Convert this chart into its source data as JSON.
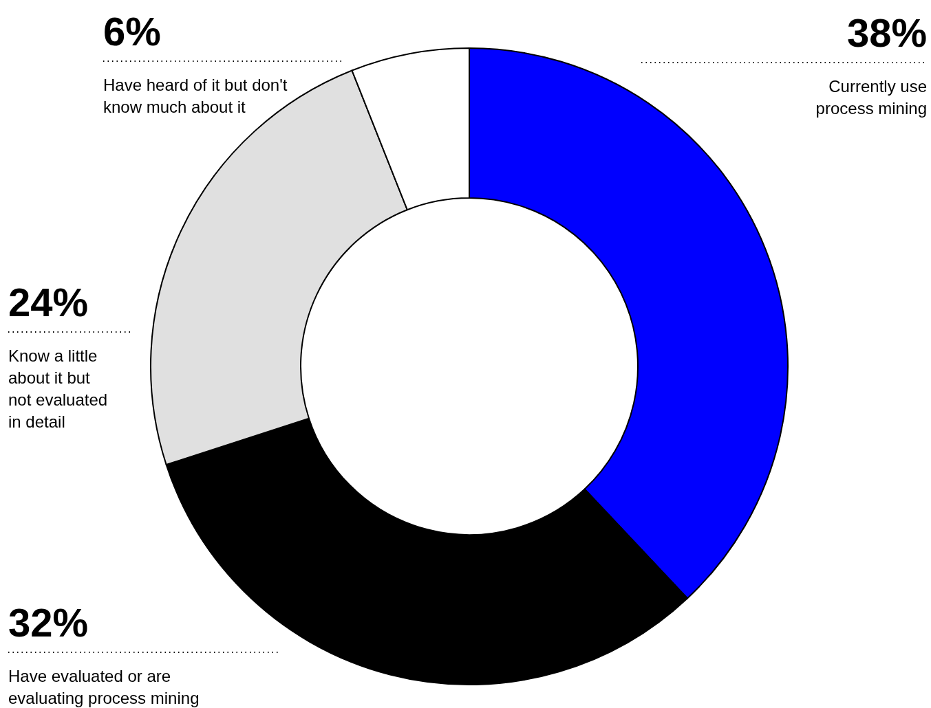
{
  "chart_data": {
    "type": "donut",
    "categories": [
      "Currently use process mining",
      "Have evaluated or are evaluating process mining",
      "Know a little about it but not evaluated in detail",
      "Have heard of it but don't know much about it"
    ],
    "values": [
      38,
      32,
      24,
      6
    ],
    "value_labels": [
      "38%",
      "32%",
      "24%",
      "6%"
    ],
    "colors": [
      "#0000ff",
      "#000000",
      "#e0e0e0",
      "#ffffff"
    ]
  }
}
